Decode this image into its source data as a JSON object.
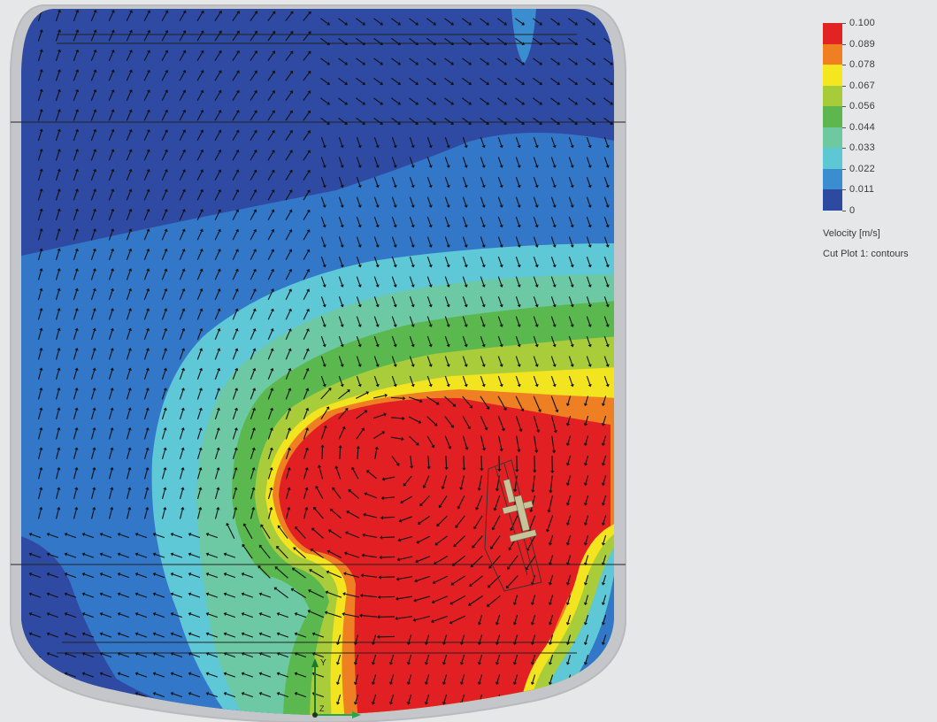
{
  "legend": {
    "ticks": [
      "0.100",
      "0.089",
      "0.078",
      "0.067",
      "0.056",
      "0.044",
      "0.033",
      "0.022",
      "0.011",
      "0"
    ],
    "colors": [
      "#e32222",
      "#f07f22",
      "#f4e61f",
      "#a6cc3a",
      "#5db74e",
      "#6ec8a0",
      "#5dc8d4",
      "#3a8ed0",
      "#2c4aa0"
    ],
    "title": "Velocity [m/s]",
    "subtitle": "Cut Plot 1: contours"
  },
  "colors": {
    "background": "#e6e7e9",
    "vessel_wall": "#c4c6c9",
    "dark_blue": "#2f4aa2",
    "blue": "#3377c9",
    "cyan": "#5ec8d6",
    "mint": "#6dc9a4",
    "green": "#5bb84e",
    "yellow_green": "#a9cc3b",
    "yellow": "#f2e41f",
    "orange": "#ef7f23",
    "red": "#e21f22",
    "arrow": "#111111",
    "impeller": "#c9c39a"
  },
  "axis_triad": {
    "y_label": "Y",
    "z_label": "Z"
  }
}
